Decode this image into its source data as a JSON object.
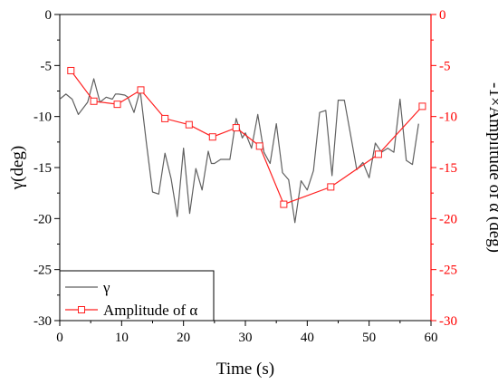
{
  "chart_data": {
    "type": "line",
    "title": "",
    "xlabel": "Time (s)",
    "ylabel_left": "γ(deg)",
    "ylabel_right": "-1×Amplitude of α (deg)",
    "xlim": [
      0,
      60
    ],
    "ylim_left": [
      -30,
      0
    ],
    "ylim_right": [
      -30,
      0
    ],
    "xticks": [
      0,
      10,
      20,
      30,
      40,
      50,
      60
    ],
    "yticks_left": [
      0,
      -5,
      -10,
      -15,
      -20,
      -25,
      -30
    ],
    "yticks_right": [
      0,
      -5,
      -10,
      -15,
      -20,
      -25,
      -30
    ],
    "grid": false,
    "legend_position": "bottom-left",
    "colors": {
      "gamma": "#606060",
      "alpha": "#ff2020",
      "right_axis": "#ff0000",
      "left_axis": "#000000"
    },
    "series": [
      {
        "name": "γ",
        "axis": "left",
        "marker": "none",
        "x": [
          0,
          1,
          2,
          3,
          4.5,
          5.5,
          6.5,
          7.5,
          8.5,
          9,
          9.5,
          10.5,
          11,
          12,
          13,
          14,
          15,
          16,
          17,
          18,
          19,
          20,
          21,
          22,
          23,
          24,
          24.5,
          25,
          26,
          27.5,
          28.5,
          29.5,
          30,
          31,
          32,
          33,
          34,
          35,
          36,
          37,
          38,
          39,
          40,
          41,
          42,
          43,
          44,
          45,
          46,
          47,
          48,
          49,
          50,
          51,
          52,
          53,
          54,
          55,
          56,
          57,
          58
        ],
        "y": [
          -8.3,
          -7.8,
          -8.3,
          -9.8,
          -8.6,
          -6.3,
          -8.6,
          -8.1,
          -8.3,
          -7.8,
          -7.8,
          -7.9,
          -8.1,
          -9.6,
          -7.4,
          -12.6,
          -17.4,
          -17.6,
          -13.6,
          -16.1,
          -19.8,
          -13.1,
          -19.5,
          -15.1,
          -17.2,
          -13.4,
          -14.6,
          -14.6,
          -14.2,
          -14.2,
          -10.2,
          -12.1,
          -11.6,
          -13.1,
          -9.8,
          -13.5,
          -14.6,
          -10.7,
          -15.5,
          -16.2,
          -20.4,
          -16.3,
          -17.2,
          -15.3,
          -9.6,
          -9.4,
          -15.8,
          -8.4,
          -8.4,
          -11.8,
          -15.2,
          -14.5,
          -16.0,
          -12.6,
          -13.5,
          -13.1,
          -13.5,
          -8.3,
          -14.3,
          -14.7,
          -10.7
        ]
      },
      {
        "name": "Amplitude of α",
        "axis": "right",
        "marker": "square",
        "x": [
          1.8,
          5.5,
          9.3,
          13.1,
          17.0,
          20.9,
          24.7,
          28.5,
          32.3,
          36.2,
          43.8,
          51.5,
          58.6
        ],
        "y": [
          -5.5,
          -8.5,
          -8.8,
          -7.4,
          -10.2,
          -10.8,
          -12.0,
          -11.1,
          -12.9,
          -18.6,
          -16.9,
          -13.7,
          -9.0
        ]
      }
    ]
  }
}
